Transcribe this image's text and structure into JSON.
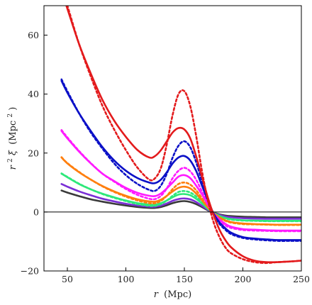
{
  "chart_data": {
    "type": "line",
    "title": "",
    "xlabel_main": "r",
    "xlabel_unit": "(Mpc)",
    "ylabel_prefix": "r",
    "ylabel_sup": "2",
    "ylabel_xi": "ξ",
    "ylabel_unit": "(Mpc",
    "ylabel_unit_sup": "2",
    "ylabel_close": ")",
    "xlim": [
      30,
      250
    ],
    "ylim": [
      -20,
      70
    ],
    "xticks": [
      50,
      100,
      150,
      200,
      250
    ],
    "yticks": [
      -20,
      0,
      20,
      40,
      60
    ],
    "zero_line": true,
    "grid": false,
    "legend": "none",
    "x": [
      45,
      50,
      60,
      70,
      80,
      90,
      100,
      110,
      120,
      125,
      130,
      135,
      140,
      145,
      150,
      155,
      160,
      165,
      170,
      175,
      180,
      185,
      190,
      200,
      210,
      220,
      230,
      240,
      250
    ],
    "series": [
      {
        "color": "#e31a1c",
        "style": "solid",
        "values": [
          75,
          69,
          57,
          47,
          38,
          31,
          25.5,
          21,
          18.5,
          19,
          21,
          24,
          27,
          28.5,
          28,
          25,
          19,
          12,
          5,
          -1,
          -6,
          -9.5,
          -12,
          -15,
          -16.5,
          -17,
          -17,
          -16.8,
          -16.5
        ]
      },
      {
        "color": "#e31a1c",
        "style": "dotted",
        "values": [
          76,
          70,
          57,
          46,
          36,
          28,
          21,
          15,
          11,
          11.5,
          15,
          23,
          33,
          40,
          41,
          36,
          26,
          14,
          4,
          -3.5,
          -8.5,
          -12,
          -14,
          -16,
          -17,
          -17.3,
          -17,
          -16.8,
          -16.5
        ]
      },
      {
        "color": "#0b10c7",
        "style": "solid",
        "values": [
          44.5,
          40.5,
          33.5,
          27.5,
          22,
          17.5,
          14,
          11.5,
          10,
          9.8,
          11,
          13.5,
          16.5,
          18.5,
          19,
          17.5,
          14,
          9,
          4,
          -0.5,
          -3.5,
          -5.5,
          -7,
          -8.5,
          -9,
          -9.3,
          -9.5,
          -9.5,
          -9.5
        ]
      },
      {
        "color": "#0b10c7",
        "style": "dotted",
        "values": [
          45,
          41,
          33.5,
          27,
          21.5,
          16.5,
          12.5,
          9.5,
          7.5,
          7.2,
          9,
          13,
          18.5,
          22.5,
          24,
          22,
          17,
          10.5,
          4.5,
          -1,
          -4,
          -6,
          -7.5,
          -8.8,
          -9.3,
          -9.6,
          -9.8,
          -9.8,
          -9.8
        ]
      },
      {
        "color": "#ff1aff",
        "style": "solid",
        "values": [
          27.5,
          25,
          20.5,
          16.5,
          13,
          10.5,
          8.2,
          6.5,
          5.5,
          5.4,
          6.3,
          8,
          10,
          12,
          12.5,
          11.5,
          9,
          6,
          2.5,
          -0.5,
          -2.5,
          -4,
          -5,
          -5.8,
          -6,
          -6.2,
          -6.3,
          -6.3,
          -6.3
        ]
      },
      {
        "color": "#ff1aff",
        "style": "dotted",
        "values": [
          27.8,
          25.3,
          20.7,
          16.6,
          13,
          10.3,
          7.8,
          5.8,
          4.5,
          4.4,
          5.5,
          8,
          11.5,
          14,
          15,
          13.8,
          11,
          7,
          3,
          -0.6,
          -3,
          -4.5,
          -5.4,
          -6.1,
          -6.3,
          -6.4,
          -6.5,
          -6.5,
          -6.5
        ]
      },
      {
        "color": "#ff7f0e",
        "style": "solid",
        "values": [
          18.5,
          16.5,
          13.5,
          11,
          8.8,
          7,
          5.5,
          4.3,
          3.6,
          3.5,
          4.2,
          5.5,
          7,
          8.2,
          8.6,
          8,
          6.3,
          4,
          1.6,
          -0.4,
          -1.8,
          -2.8,
          -3.4,
          -3.9,
          -4.1,
          -4.2,
          -4.3,
          -4.3,
          -4.3
        ]
      },
      {
        "color": "#ff7f0e",
        "style": "dotted",
        "values": [
          18.6,
          16.6,
          13.6,
          11,
          8.7,
          6.8,
          5.2,
          3.9,
          3,
          3,
          3.8,
          5.5,
          7.8,
          9.5,
          10,
          9.3,
          7.4,
          4.7,
          1.9,
          -0.4,
          -2,
          -3,
          -3.6,
          -4.1,
          -4.2,
          -4.3,
          -4.4,
          -4.4,
          -4.4
        ]
      },
      {
        "color": "#2ee87a",
        "style": "solid",
        "values": [
          13,
          11.8,
          9.5,
          7.7,
          6.2,
          5,
          3.9,
          3,
          2.5,
          2.5,
          3,
          3.9,
          5,
          5.9,
          6.1,
          5.7,
          4.5,
          2.9,
          1.1,
          -0.3,
          -1.3,
          -2,
          -2.4,
          -2.8,
          -2.9,
          -3,
          -3,
          -3,
          -3
        ]
      },
      {
        "color": "#2ee87a",
        "style": "dotted",
        "values": [
          13.1,
          11.9,
          9.6,
          7.7,
          6.1,
          4.8,
          3.7,
          2.7,
          2.1,
          2.1,
          2.7,
          3.9,
          5.5,
          6.8,
          7.1,
          6.6,
          5.3,
          3.3,
          1.3,
          -0.3,
          -1.4,
          -2.1,
          -2.6,
          -2.9,
          -3,
          -3.1,
          -3.1,
          -3.1,
          -3.1
        ]
      },
      {
        "color": "#7b2fd6",
        "style": "solid",
        "values": [
          9.5,
          8.6,
          7,
          5.7,
          4.5,
          3.6,
          2.8,
          2.2,
          1.8,
          1.8,
          2.2,
          2.9,
          3.8,
          4.4,
          4.6,
          4.3,
          3.4,
          2.1,
          0.8,
          -0.3,
          -1,
          -1.5,
          -1.8,
          -2.1,
          -2.2,
          -2.3,
          -2.3,
          -2.3,
          -2.3
        ]
      },
      {
        "color": "#3a3a3a",
        "style": "solid",
        "values": [
          7.3,
          6.6,
          5.4,
          4.3,
          3.5,
          2.8,
          2.2,
          1.7,
          1.4,
          1.4,
          1.7,
          2.3,
          3,
          3.5,
          3.7,
          3.4,
          2.7,
          1.7,
          0.6,
          -0.2,
          -0.8,
          -1.2,
          -1.4,
          -1.6,
          -1.7,
          -1.8,
          -1.8,
          -1.8,
          -1.8
        ]
      }
    ]
  }
}
